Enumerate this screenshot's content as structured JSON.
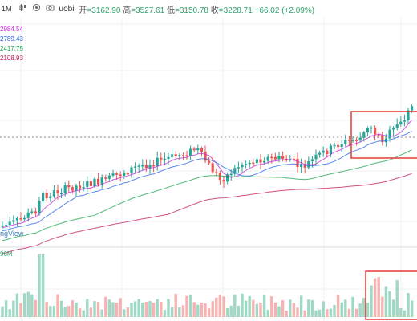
{
  "header": {
    "timeframe": "1M",
    "source": "uobi",
    "open_label": "开",
    "open": "3162.90",
    "high_label": "高",
    "high": "3527.61",
    "low_label": "低",
    "low": "3150.78",
    "close_label": "收",
    "close": "3228.71",
    "change": "+66.02 (+2.09%)"
  },
  "ma_values": [
    {
      "value": "2984.54",
      "color": "#c026d3"
    },
    {
      "value": "2789.43",
      "color": "#2563eb"
    },
    {
      "value": "2417.75",
      "color": "#16a34a"
    },
    {
      "value": "2108.93",
      "color": "#be185d"
    }
  ],
  "watermark": "ngView",
  "volume_label": "96M",
  "colors": {
    "up": "#26a69a",
    "down": "#ef5350",
    "up_vol": "#9fd8c4",
    "down_vol": "#f7b3b1",
    "highlight_box": "#e53935"
  },
  "icons": [
    "candle-type-icon",
    "settings-icon",
    "camera-icon"
  ]
}
